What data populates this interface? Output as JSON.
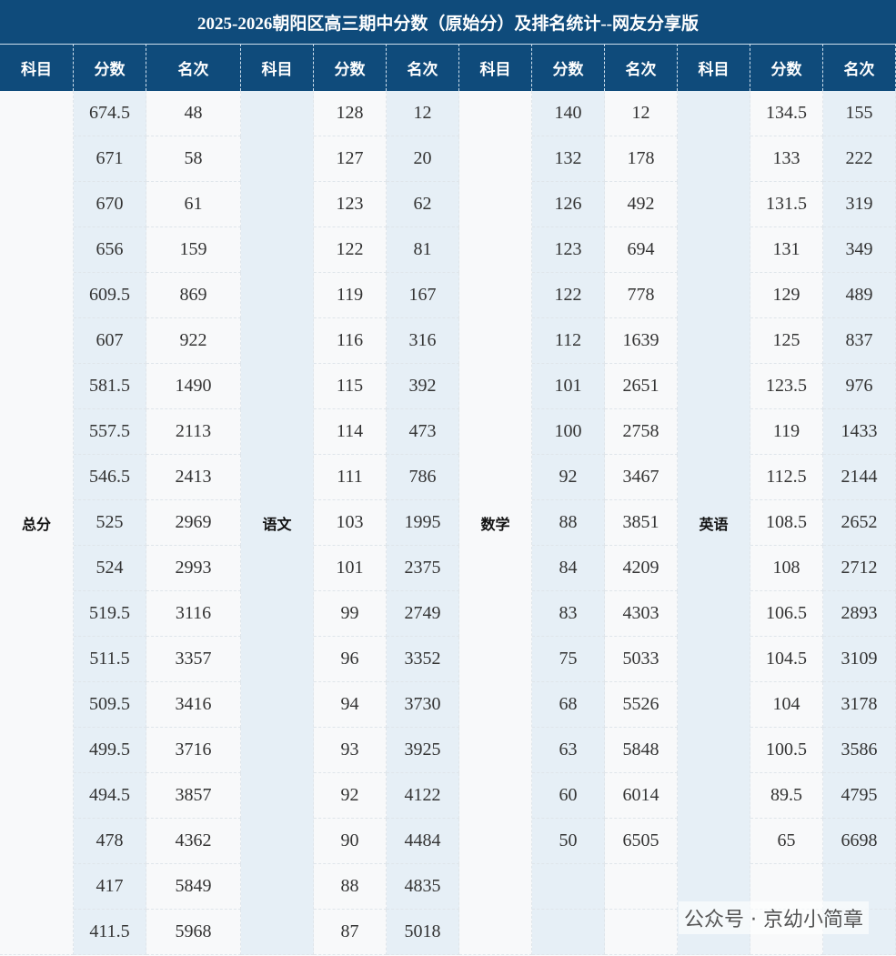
{
  "title": "2025-2026朝阳区高三期中分数（原始分）及排名统计--网友分享版",
  "headers": [
    "科目",
    "分数",
    "名次",
    "科目",
    "分数",
    "名次",
    "科目",
    "分数",
    "名次",
    "科目",
    "分数",
    "名次"
  ],
  "groups": [
    {
      "subject": "总分",
      "rows": [
        [
          674.5,
          48
        ],
        [
          671,
          58
        ],
        [
          670,
          61
        ],
        [
          656,
          159
        ],
        [
          609.5,
          869
        ],
        [
          607,
          922
        ],
        [
          581.5,
          1490
        ],
        [
          557.5,
          2113
        ],
        [
          546.5,
          2413
        ],
        [
          525,
          2969
        ],
        [
          524,
          2993
        ],
        [
          519.5,
          3116
        ],
        [
          511.5,
          3357
        ],
        [
          509.5,
          3416
        ],
        [
          499.5,
          3716
        ],
        [
          494.5,
          3857
        ],
        [
          478,
          4362
        ],
        [
          417,
          5849
        ],
        [
          411.5,
          5968
        ]
      ]
    },
    {
      "subject": "语文",
      "rows": [
        [
          128,
          12
        ],
        [
          127,
          20
        ],
        [
          123,
          62
        ],
        [
          122,
          81
        ],
        [
          119,
          167
        ],
        [
          116,
          316
        ],
        [
          115,
          392
        ],
        [
          114,
          473
        ],
        [
          111,
          786
        ],
        [
          103,
          1995
        ],
        [
          101,
          2375
        ],
        [
          99,
          2749
        ],
        [
          96,
          3352
        ],
        [
          94,
          3730
        ],
        [
          93,
          3925
        ],
        [
          92,
          4122
        ],
        [
          90,
          4484
        ],
        [
          88,
          4835
        ],
        [
          87,
          5018
        ]
      ]
    },
    {
      "subject": "数学",
      "rows": [
        [
          140,
          12
        ],
        [
          132,
          178
        ],
        [
          126,
          492
        ],
        [
          123,
          694
        ],
        [
          122,
          778
        ],
        [
          112,
          1639
        ],
        [
          101,
          2651
        ],
        [
          100,
          2758
        ],
        [
          92,
          3467
        ],
        [
          88,
          3851
        ],
        [
          84,
          4209
        ],
        [
          83,
          4303
        ],
        [
          75,
          5033
        ],
        [
          68,
          5526
        ],
        [
          63,
          5848
        ],
        [
          60,
          6014
        ],
        [
          50,
          6505
        ]
      ]
    },
    {
      "subject": "英语",
      "rows": [
        [
          134.5,
          155
        ],
        [
          133,
          222
        ],
        [
          131.5,
          319
        ],
        [
          131,
          349
        ],
        [
          129,
          489
        ],
        [
          125,
          837
        ],
        [
          123.5,
          976
        ],
        [
          119,
          1433
        ],
        [
          112.5,
          2144
        ],
        [
          108.5,
          2652
        ],
        [
          108,
          2712
        ],
        [
          106.5,
          2893
        ],
        [
          104.5,
          3109
        ],
        [
          104,
          3178
        ],
        [
          100.5,
          3586
        ],
        [
          89.5,
          4795
        ],
        [
          65,
          6698
        ]
      ]
    }
  ],
  "watermark": "公众号 · 京幼小简章"
}
